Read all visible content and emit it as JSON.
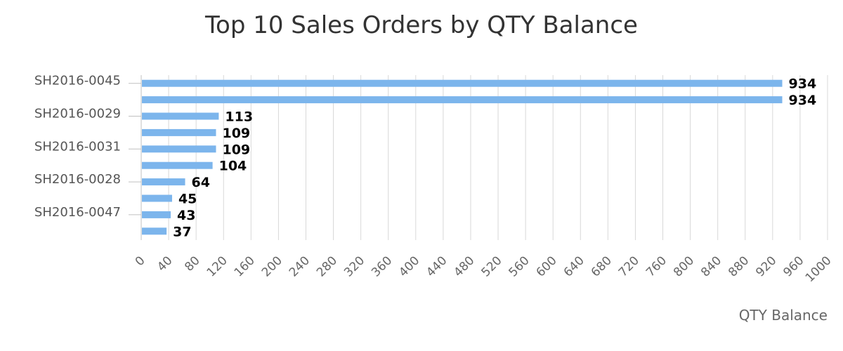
{
  "chart_data": {
    "type": "bar",
    "orientation": "horizontal",
    "title": "Top 10 Sales Orders by QTY Balance",
    "xlabel": "QTY Balance",
    "ylabel": "",
    "categories": [
      "SH2016-0045",
      "",
      "SH2016-0029",
      "",
      "SH2016-0031",
      "",
      "SH2016-0028",
      "",
      "SH2016-0047",
      ""
    ],
    "values": [
      934,
      934,
      113,
      109,
      109,
      104,
      64,
      45,
      43,
      37
    ],
    "xlim": [
      0,
      1000
    ],
    "x_ticks": [
      "0",
      "40",
      "80",
      "120",
      "160",
      "200",
      "240",
      "280",
      "320",
      "360",
      "400",
      "440",
      "480",
      "520",
      "560",
      "600",
      "640",
      "680",
      "720",
      "760",
      "800",
      "840",
      "880",
      "920",
      "960",
      "1000"
    ],
    "grid": "vertical",
    "legend": "none",
    "bar_color": "#7cb5ec"
  }
}
